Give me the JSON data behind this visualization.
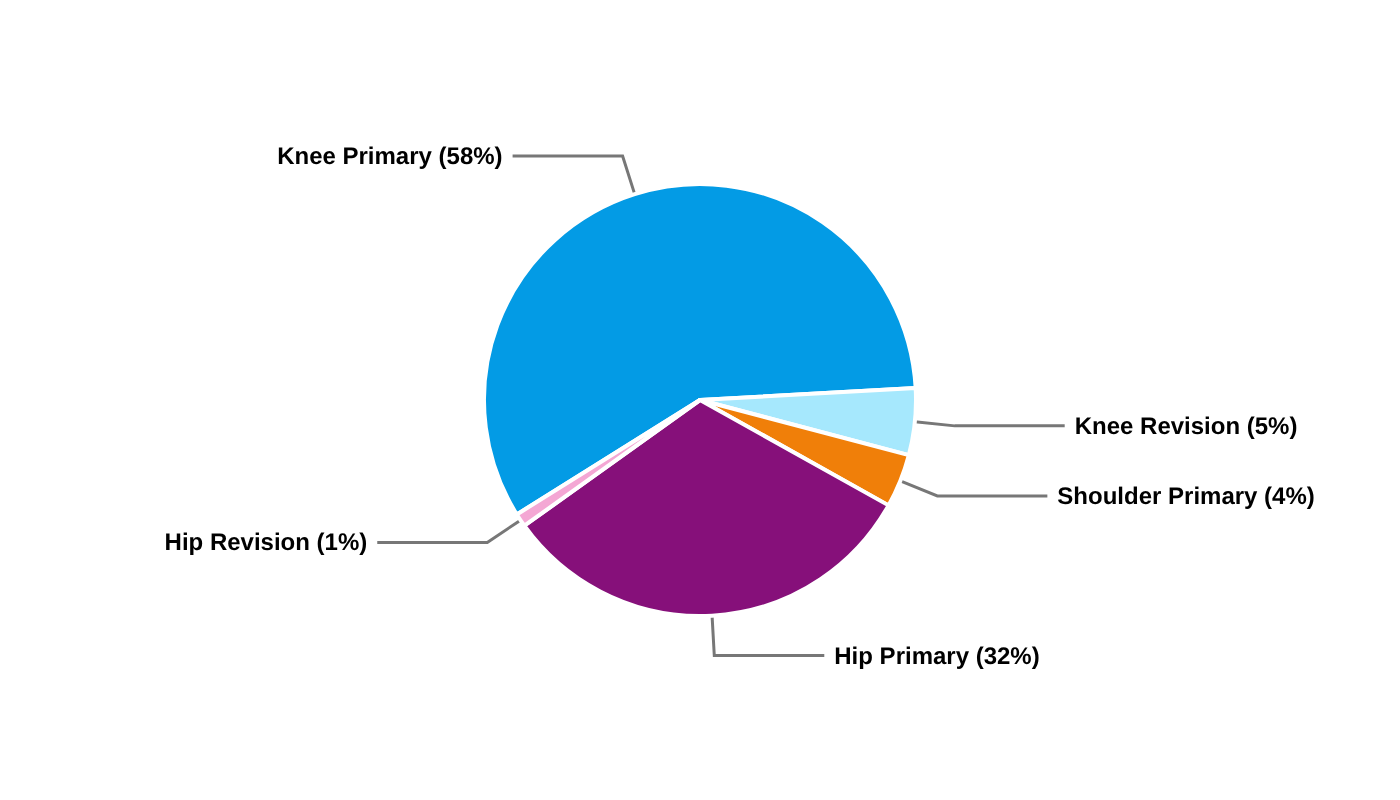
{
  "chart_data": {
    "type": "pie",
    "categories": [
      "Knee Primary (58%)",
      "Knee Revision (5%)",
      "Shoulder Primary (4%)",
      "Hip Primary (32%)",
      "Hip Revision (1%)"
    ],
    "values": [
      58,
      5,
      4,
      32,
      1
    ],
    "colors": [
      "#039be5",
      "#a6e8fd",
      "#f07f09",
      "#86107a",
      "#f4a7d4"
    ],
    "legend": false
  }
}
